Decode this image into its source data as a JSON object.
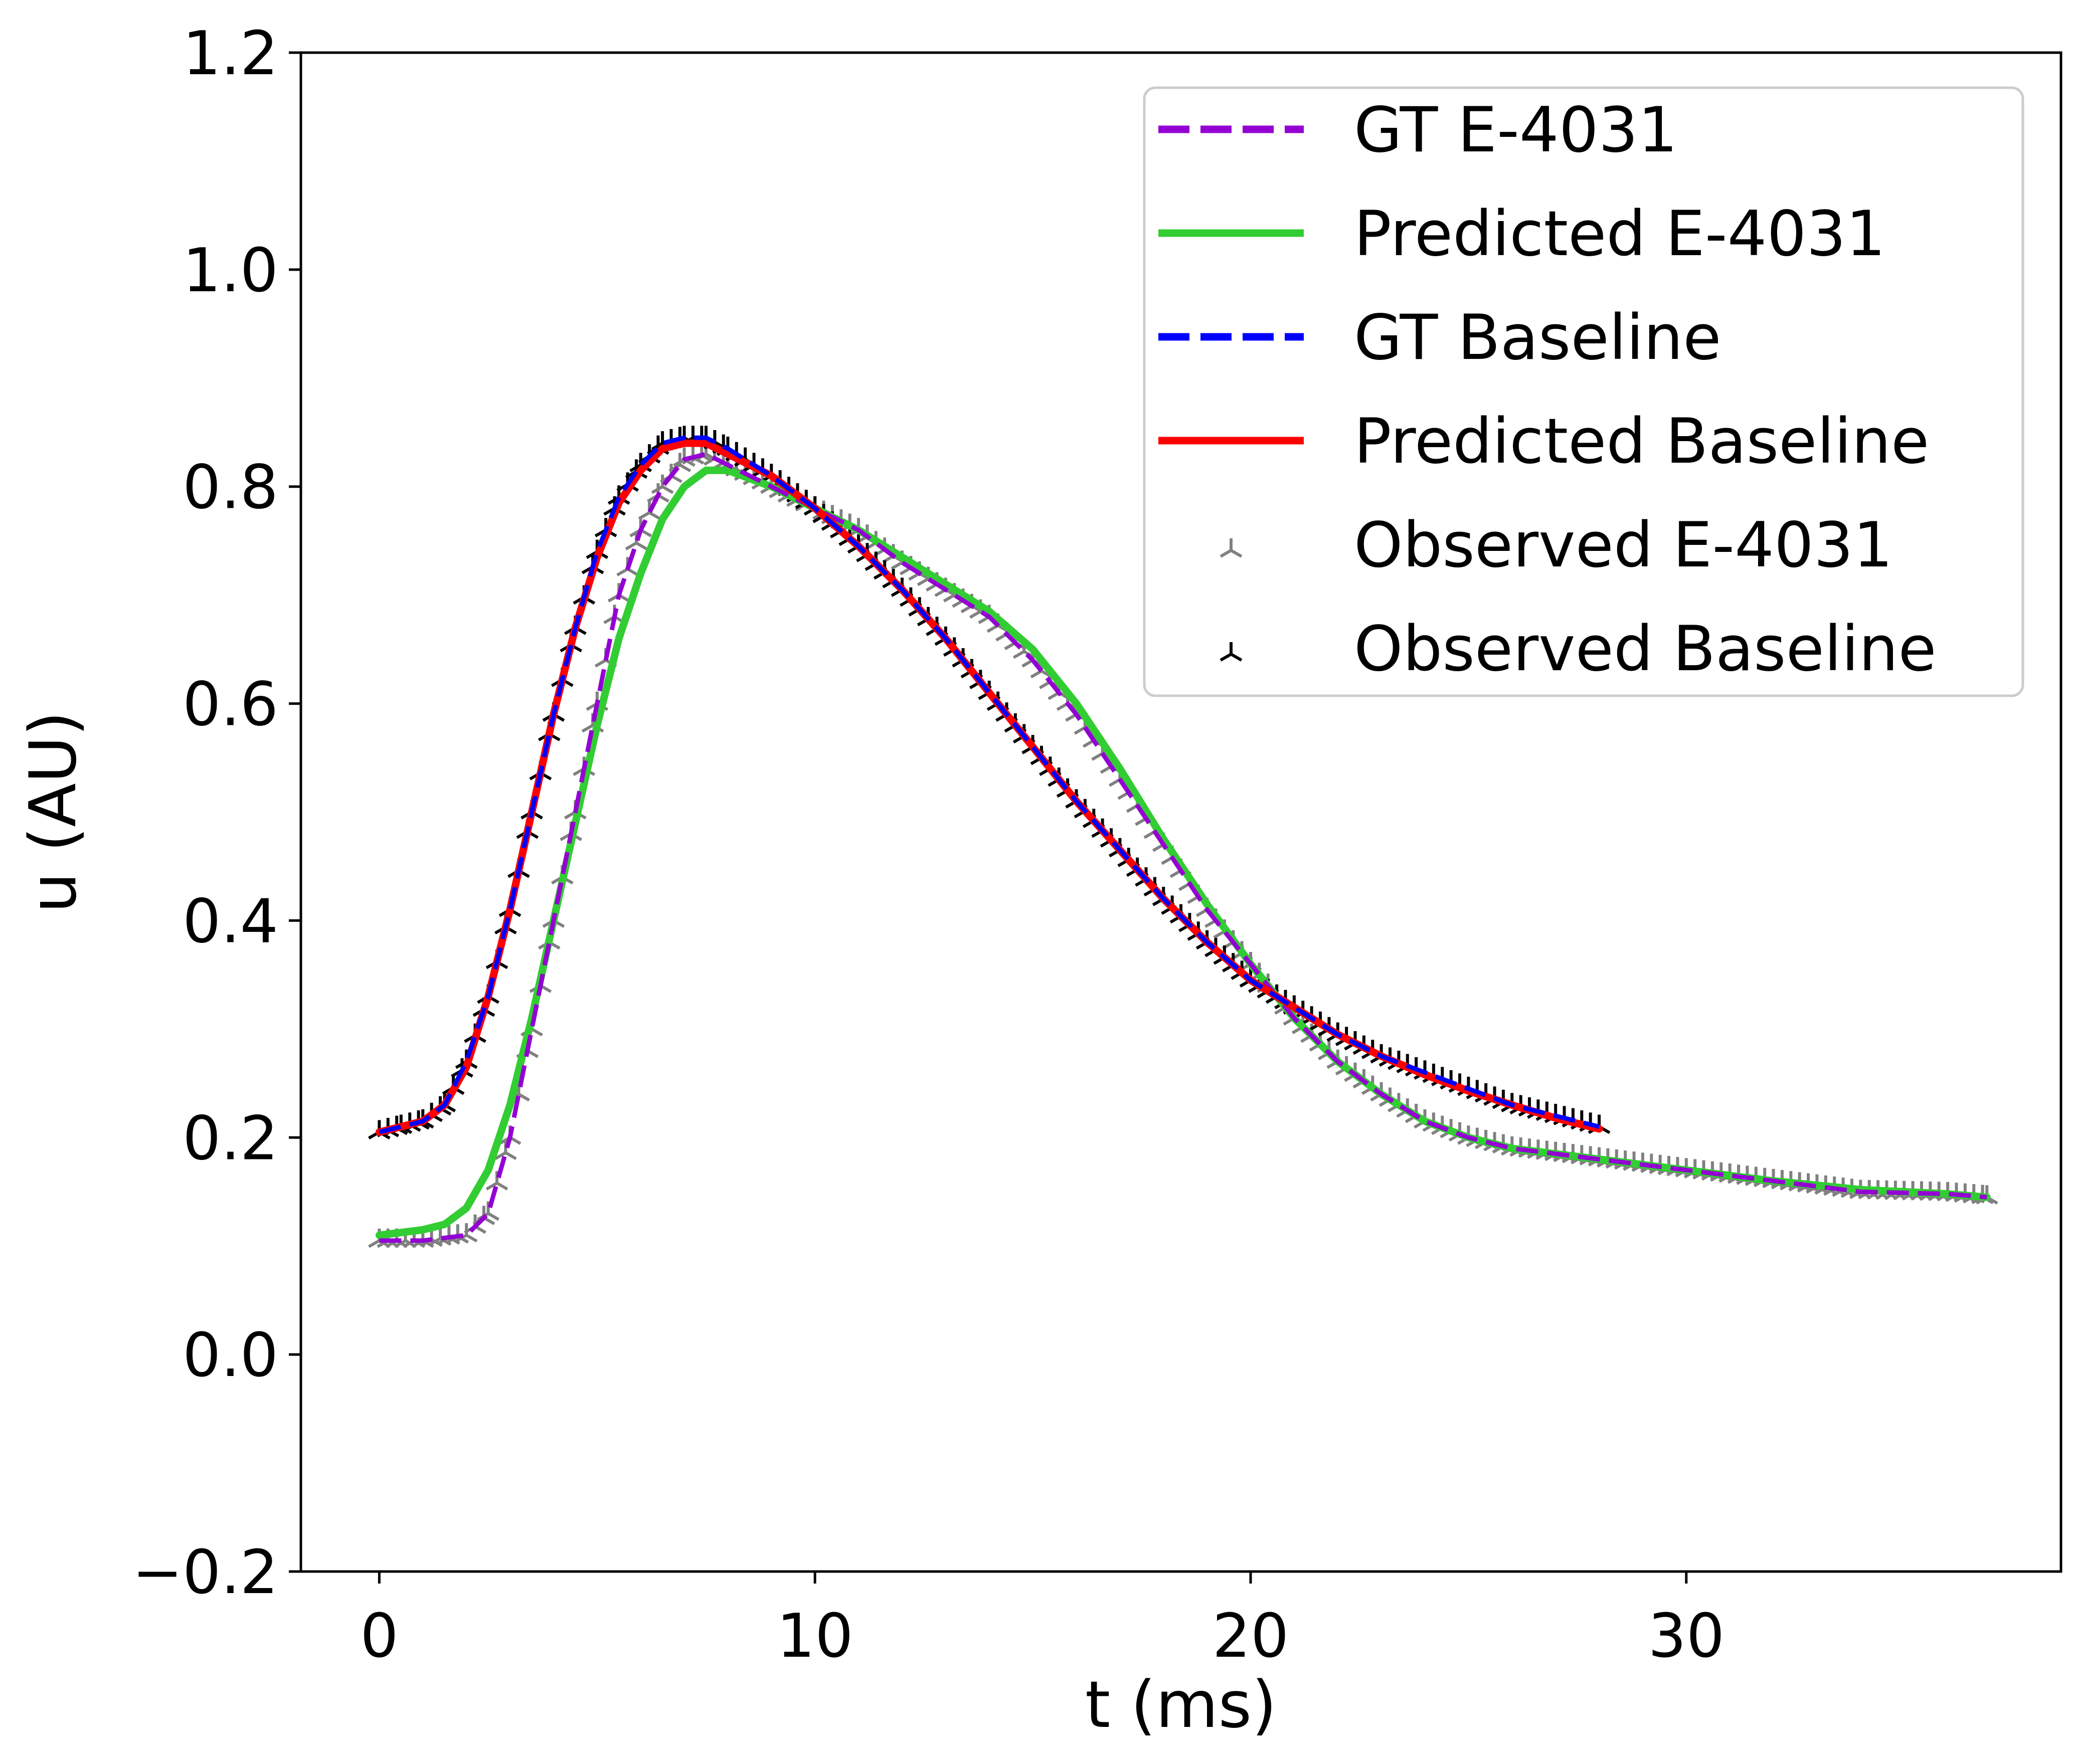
{
  "chart_data": {
    "type": "line",
    "xlabel": "t (ms)",
    "ylabel": "u (AU)",
    "xlim": [
      -1.8,
      38.6
    ],
    "ylim": [
      -0.2,
      1.2
    ],
    "xticks": [
      0,
      10,
      20,
      30
    ],
    "xtick_labels": [
      "0",
      "10",
      "20",
      "30"
    ],
    "yticks": [
      -0.2,
      0.0,
      0.2,
      0.4,
      0.6,
      0.8,
      1.0,
      1.2
    ],
    "ytick_labels": [
      "−0.2",
      "0.0",
      "0.2",
      "0.4",
      "0.6",
      "0.8",
      "1.0",
      "1.2"
    ],
    "grid": false,
    "legend_position": "top-right",
    "series": [
      {
        "name": "GT E-4031",
        "style": "dashed",
        "color": "#9400d3",
        "x": [
          0,
          1,
          2,
          2.5,
          3,
          3.5,
          4,
          4.5,
          5,
          5.5,
          6,
          6.5,
          7,
          7.5,
          8,
          9,
          10,
          11,
          12,
          13,
          14,
          15,
          16,
          17,
          18,
          19,
          20,
          21,
          22,
          23,
          24,
          25,
          26,
          27,
          28,
          30,
          32,
          34,
          36,
          36.9
        ],
        "y": [
          0.105,
          0.105,
          0.11,
          0.13,
          0.2,
          0.3,
          0.4,
          0.5,
          0.6,
          0.7,
          0.76,
          0.8,
          0.825,
          0.83,
          0.82,
          0.8,
          0.78,
          0.76,
          0.73,
          0.705,
          0.68,
          0.64,
          0.59,
          0.53,
          0.47,
          0.41,
          0.36,
          0.31,
          0.27,
          0.24,
          0.215,
          0.2,
          0.19,
          0.185,
          0.18,
          0.17,
          0.16,
          0.15,
          0.148,
          0.145
        ]
      },
      {
        "name": "Predicted E-4031",
        "style": "solid",
        "color": "#32cd32",
        "x": [
          0,
          1,
          1.5,
          2,
          2.5,
          3,
          3.5,
          4,
          4.5,
          5,
          5.5,
          6,
          6.5,
          7,
          7.5,
          8,
          9,
          10,
          11,
          12,
          13,
          14,
          15,
          16,
          17,
          18,
          19,
          20,
          21,
          22,
          23,
          24,
          25,
          26,
          27,
          28,
          30,
          32,
          34,
          36,
          36.9
        ],
        "y": [
          0.11,
          0.115,
          0.12,
          0.135,
          0.17,
          0.23,
          0.31,
          0.4,
          0.49,
          0.58,
          0.66,
          0.72,
          0.77,
          0.8,
          0.815,
          0.815,
          0.8,
          0.78,
          0.76,
          0.735,
          0.71,
          0.685,
          0.65,
          0.6,
          0.54,
          0.475,
          0.415,
          0.36,
          0.31,
          0.27,
          0.24,
          0.215,
          0.2,
          0.19,
          0.185,
          0.18,
          0.17,
          0.16,
          0.152,
          0.148,
          0.145
        ]
      },
      {
        "name": "GT Baseline",
        "style": "dashed",
        "color": "#0000ff",
        "x": [
          0,
          0.5,
          1,
          1.5,
          2,
          2.5,
          3,
          3.5,
          4,
          4.5,
          5,
          5.5,
          6,
          6.5,
          7,
          7.5,
          8,
          9,
          10,
          11,
          12,
          13,
          14,
          15,
          16,
          17,
          18,
          19,
          20,
          21,
          22,
          23,
          24,
          25,
          26,
          27,
          28
        ],
        "y": [
          0.205,
          0.21,
          0.215,
          0.23,
          0.27,
          0.33,
          0.41,
          0.5,
          0.59,
          0.67,
          0.74,
          0.79,
          0.82,
          0.84,
          0.845,
          0.845,
          0.835,
          0.81,
          0.78,
          0.745,
          0.705,
          0.66,
          0.61,
          0.56,
          0.51,
          0.465,
          0.42,
          0.38,
          0.345,
          0.32,
          0.295,
          0.275,
          0.26,
          0.245,
          0.23,
          0.22,
          0.21
        ]
      },
      {
        "name": "Predicted Baseline",
        "style": "solid",
        "color": "#ff0000",
        "x": [
          0,
          0.5,
          1,
          1.5,
          2,
          2.5,
          3,
          3.5,
          4,
          4.5,
          5,
          5.5,
          6,
          6.5,
          7,
          7.5,
          8,
          9,
          10,
          11,
          12,
          13,
          14,
          15,
          16,
          17,
          18,
          19,
          20,
          21,
          22,
          23,
          24,
          25,
          26,
          27,
          28
        ],
        "y": [
          0.205,
          0.21,
          0.215,
          0.23,
          0.265,
          0.33,
          0.41,
          0.5,
          0.59,
          0.67,
          0.735,
          0.785,
          0.815,
          0.835,
          0.84,
          0.84,
          0.83,
          0.81,
          0.78,
          0.745,
          0.705,
          0.66,
          0.61,
          0.56,
          0.51,
          0.465,
          0.42,
          0.38,
          0.345,
          0.32,
          0.295,
          0.275,
          0.258,
          0.243,
          0.23,
          0.218,
          0.208
        ]
      },
      {
        "name": "Observed E-4031",
        "style": "markers",
        "marker": "tri_up",
        "color": "#808080",
        "x": [
          0,
          1,
          2,
          2.5,
          3,
          3.5,
          4,
          4.5,
          5,
          5.5,
          6,
          6.5,
          7,
          7.5,
          8,
          9,
          10,
          11,
          12,
          13,
          14,
          15,
          16,
          17,
          18,
          19,
          20,
          21,
          22,
          23,
          24,
          25,
          26,
          27,
          28,
          30,
          32,
          34,
          36,
          36.9
        ],
        "y": [
          0.105,
          0.105,
          0.11,
          0.13,
          0.2,
          0.3,
          0.4,
          0.5,
          0.6,
          0.7,
          0.76,
          0.8,
          0.825,
          0.83,
          0.82,
          0.8,
          0.78,
          0.76,
          0.73,
          0.705,
          0.68,
          0.64,
          0.59,
          0.53,
          0.47,
          0.41,
          0.36,
          0.31,
          0.27,
          0.24,
          0.215,
          0.2,
          0.19,
          0.185,
          0.18,
          0.17,
          0.16,
          0.15,
          0.148,
          0.145
        ]
      },
      {
        "name": "Observed Baseline",
        "style": "markers",
        "marker": "tri_up",
        "color": "#000000",
        "x": [
          0,
          0.5,
          1,
          1.5,
          2,
          2.5,
          3,
          3.5,
          4,
          4.5,
          5,
          5.5,
          6,
          6.5,
          7,
          7.5,
          8,
          9,
          10,
          11,
          12,
          13,
          14,
          15,
          16,
          17,
          18,
          19,
          20,
          21,
          22,
          23,
          24,
          25,
          26,
          27,
          28
        ],
        "y": [
          0.205,
          0.21,
          0.215,
          0.23,
          0.27,
          0.33,
          0.41,
          0.5,
          0.59,
          0.67,
          0.74,
          0.79,
          0.82,
          0.84,
          0.845,
          0.845,
          0.835,
          0.81,
          0.78,
          0.745,
          0.705,
          0.66,
          0.61,
          0.56,
          0.51,
          0.465,
          0.42,
          0.38,
          0.345,
          0.32,
          0.295,
          0.275,
          0.26,
          0.245,
          0.23,
          0.22,
          0.21
        ]
      }
    ]
  }
}
